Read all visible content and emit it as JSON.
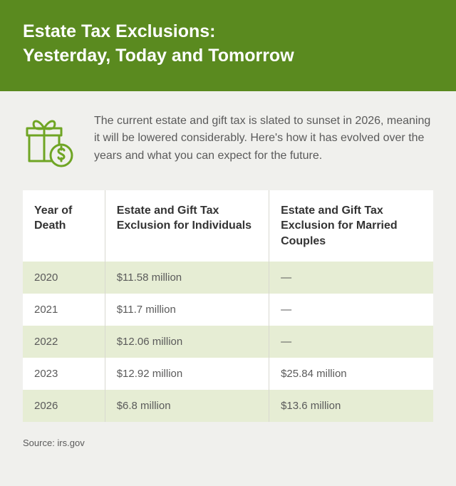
{
  "header": {
    "title_line1": "Estate Tax Exclusions:",
    "title_line2": "Yesterday, Today and Tomorrow"
  },
  "intro": {
    "text": "The current estate and gift tax is slated to sunset in 2026, meaning it will be lowered considerably. Here's how it has evolved over the years and what you can expect for the future."
  },
  "icon": {
    "stroke_color": "#6fa524",
    "name": "gift-dollar-icon"
  },
  "table": {
    "columns": [
      "Year of Death",
      "Estate and Gift Tax Exclusion for Individuals",
      "Estate and Gift Tax Exclusion for Married Couples"
    ],
    "col_widths": [
      "20%",
      "40%",
      "40%"
    ],
    "row_alt_bg": "#e6edd4",
    "row_bg": "#ffffff",
    "border_color": "#d8d8d0",
    "rows": [
      {
        "year": "2020",
        "individual": "$11.58 million",
        "married": "—",
        "alt": true
      },
      {
        "year": "2021",
        "individual": "$11.7 million",
        "married": "—",
        "alt": false
      },
      {
        "year": "2022",
        "individual": "$12.06 million",
        "married": "—",
        "alt": true
      },
      {
        "year": "2023",
        "individual": "$12.92 million",
        "married": "$25.84 million",
        "alt": false
      },
      {
        "year": "2026",
        "individual": "$6.8 million",
        "married": "$13.6 million",
        "alt": true
      }
    ]
  },
  "source": {
    "text": "Source: irs.gov"
  },
  "colors": {
    "header_bg": "#5a8a1f",
    "header_text": "#ffffff",
    "page_bg": "#f0f0ed",
    "body_text": "#5a5a5a",
    "heading_text": "#333333"
  }
}
